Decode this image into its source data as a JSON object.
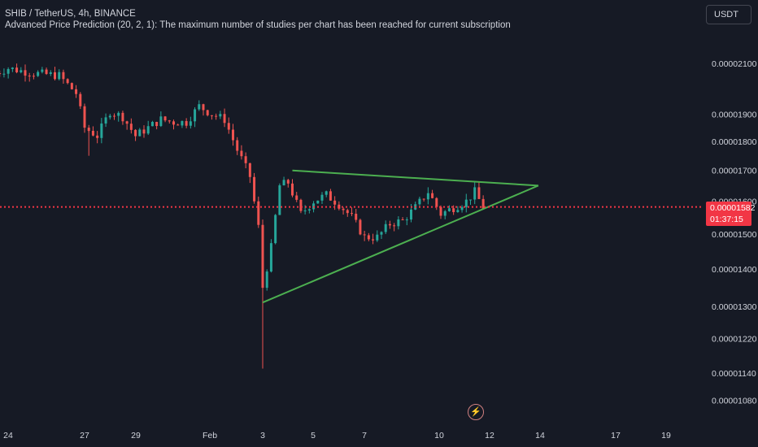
{
  "header": {
    "symbol_line": "SHIB / TetherUS, 4h, BINANCE",
    "study_line": "Advanced Price Prediction (20, 2, 1): The maximum number of studies per chart has been reached for current subscription"
  },
  "currency": "USDT",
  "last_price": {
    "value": "0.00001582",
    "countdown": "01:37:15",
    "color": "#f23645"
  },
  "colors": {
    "up": "#26a69a",
    "down": "#ef5350",
    "trendline": "#4caf50",
    "background": "#161a25"
  },
  "icons": {
    "replay": "lightning-icon"
  },
  "chart_data": {
    "type": "candlestick",
    "title": "",
    "xlabel": "",
    "ylabel": "",
    "y_scale": "log",
    "x_ticks": [
      "24",
      "27",
      "29",
      "Feb",
      "3",
      "5",
      "7",
      "10",
      "12",
      "14",
      "17",
      "19"
    ],
    "y_ticks": [
      "0.00002100",
      "0.00001900",
      "0.00001800",
      "0.00001700",
      "0.00001600",
      "0.00001500",
      "0.00001400",
      "0.00001300",
      "0.00001220",
      "0.00001140",
      "0.00001080"
    ],
    "last_price_line": 1.582e-05,
    "close_path": [
      [
        "Jan 23 12:00",
        2.06e-05
      ],
      [
        "Jan 24 00:00",
        2.08e-05
      ],
      [
        "Jan 25 00:00",
        2.06e-05
      ],
      [
        "Jan 26 00:00",
        2.05e-05
      ],
      [
        "Jan 26 16:00",
        1.98e-05
      ],
      [
        "Jan 27 00:00",
        1.85e-05
      ],
      [
        "Jan 27 12:00",
        1.82e-05
      ],
      [
        "Jan 28 00:00",
        1.91e-05
      ],
      [
        "Jan 28 12:00",
        1.89e-05
      ],
      [
        "Jan 29 00:00",
        1.82e-05
      ],
      [
        "Jan 29 12:00",
        1.85e-05
      ],
      [
        "Jan 30 00:00",
        1.88e-05
      ],
      [
        "Jan 30 12:00",
        1.87e-05
      ],
      [
        "Jan 31 00:00",
        1.87e-05
      ],
      [
        "Jan 31 12:00",
        1.93e-05
      ],
      [
        "Feb 1 00:00",
        1.9e-05
      ],
      [
        "Feb 1 12:00",
        1.88e-05
      ],
      [
        "Feb 2 00:00",
        1.77e-05
      ],
      [
        "Feb 2 12:00",
        1.68e-05
      ],
      [
        "Feb 2 20:00",
        1.52e-05
      ],
      [
        "Feb 3 00:00",
        1.35e-05
      ],
      [
        "Feb 3 08:00",
        1.46e-05
      ],
      [
        "Feb 3 16:00",
        1.65e-05
      ],
      [
        "Feb 4 00:00",
        1.66e-05
      ],
      [
        "Feb 4 12:00",
        1.56e-05
      ],
      [
        "Feb 5 00:00",
        1.6e-05
      ],
      [
        "Feb 5 12:00",
        1.62e-05
      ],
      [
        "Feb 6 00:00",
        1.59e-05
      ],
      [
        "Feb 6 12:00",
        1.55e-05
      ],
      [
        "Feb 7 00:00",
        1.49e-05
      ],
      [
        "Feb 7 12:00",
        1.49e-05
      ],
      [
        "Feb 8 00:00",
        1.53e-05
      ],
      [
        "Feb 8 12:00",
        1.54e-05
      ],
      [
        "Feb 9 00:00",
        1.58e-05
      ],
      [
        "Feb 9 12:00",
        1.63e-05
      ],
      [
        "Feb 10 00:00",
        1.56e-05
      ],
      [
        "Feb 10 12:00",
        1.58e-05
      ],
      [
        "Feb 11 00:00",
        1.6e-05
      ],
      [
        "Feb 11 08:00",
        1.63e-05
      ],
      [
        "Feb 11 16:00",
        1.58e-05
      ]
    ],
    "spikes": [
      {
        "x": "Feb 3 00:00",
        "low": 1.15e-05
      },
      {
        "x": "Jan 27 04:00",
        "low": 1.75e-05
      }
    ],
    "trendlines": [
      {
        "from": [
          "Feb 3 00:00",
          1.31e-05
        ],
        "to": [
          "Feb 13 20:00",
          1.65e-05
        ]
      },
      {
        "from": [
          "Feb 4 04:00",
          1.7e-05
        ],
        "to": [
          "Feb 13 20:00",
          1.65e-05
        ]
      }
    ]
  }
}
